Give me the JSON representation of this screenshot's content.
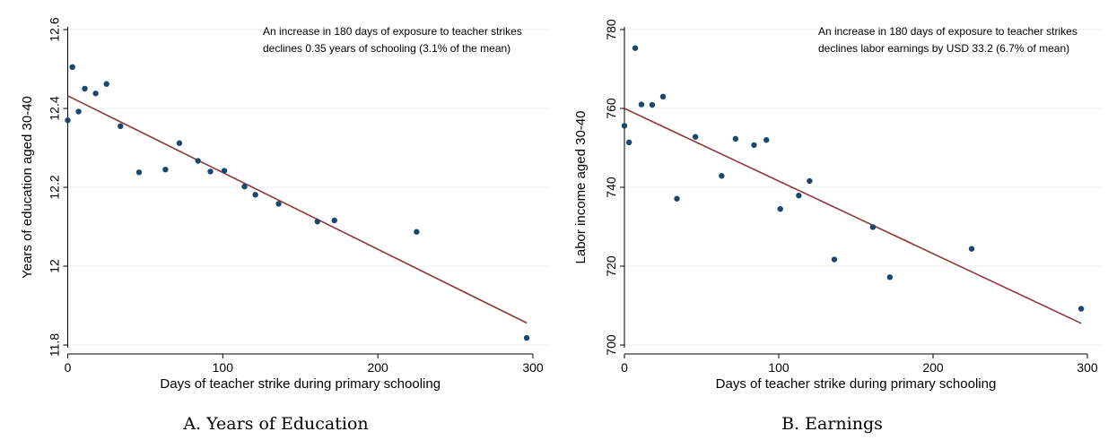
{
  "chart_data": [
    {
      "type": "scatter",
      "caption": "A. Years of Education",
      "annotation_lines": [
        "An increase in 180 days of exposure to teacher strikes",
        "declines 0.35 years of schooling (3.1% of the mean)"
      ],
      "xlabel": "Days of teacher strike during primary schooling",
      "ylabel": "Years of education aged 30-40",
      "xlim": [
        0,
        300
      ],
      "ylim": [
        11.8,
        12.6
      ],
      "xticks": [
        0,
        100,
        200,
        300
      ],
      "yticks": [
        11.8,
        12,
        12.2,
        12.4,
        12.6
      ],
      "ytick_labels": [
        "11.8",
        "12",
        "12.2",
        "12.4",
        "12.6"
      ],
      "grid": true,
      "points": [
        {
          "x": 0,
          "y": 12.37
        },
        {
          "x": 3,
          "y": 12.505
        },
        {
          "x": 7,
          "y": 12.392
        },
        {
          "x": 11,
          "y": 12.45
        },
        {
          "x": 18,
          "y": 12.438
        },
        {
          "x": 25,
          "y": 12.462
        },
        {
          "x": 34,
          "y": 12.355
        },
        {
          "x": 46,
          "y": 12.238
        },
        {
          "x": 63,
          "y": 12.245
        },
        {
          "x": 72,
          "y": 12.312
        },
        {
          "x": 84,
          "y": 12.267
        },
        {
          "x": 92,
          "y": 12.24
        },
        {
          "x": 101,
          "y": 12.242
        },
        {
          "x": 114,
          "y": 12.202
        },
        {
          "x": 121,
          "y": 12.181
        },
        {
          "x": 136,
          "y": 12.158
        },
        {
          "x": 161,
          "y": 12.113
        },
        {
          "x": 172,
          "y": 12.116
        },
        {
          "x": 225,
          "y": 12.087
        },
        {
          "x": 296,
          "y": 11.818
        }
      ],
      "fit_line": {
        "x": [
          0,
          296
        ],
        "y": [
          12.432,
          11.856
        ]
      },
      "point_color": "#1a476f",
      "line_color": "#90353b"
    },
    {
      "type": "scatter",
      "caption": "B. Earnings",
      "annotation_lines": [
        "An increase in 180 days of exposure to teacher strikes",
        "declines labor earnings by USD 33.2 (6.7% of mean)"
      ],
      "xlabel": "Days of teacher strike during primary schooling",
      "ylabel": "Labor income aged 30-40",
      "xlim": [
        0,
        300
      ],
      "ylim": [
        700,
        780
      ],
      "xticks": [
        0,
        100,
        200,
        300
      ],
      "yticks": [
        700,
        720,
        740,
        760,
        780
      ],
      "ytick_labels": [
        "700",
        "720",
        "740",
        "760",
        "780"
      ],
      "grid": true,
      "points": [
        {
          "x": 0,
          "y": 755.6
        },
        {
          "x": 3,
          "y": 751.4
        },
        {
          "x": 7,
          "y": 775.3
        },
        {
          "x": 11,
          "y": 761.0
        },
        {
          "x": 18,
          "y": 760.9
        },
        {
          "x": 25,
          "y": 763.0
        },
        {
          "x": 34,
          "y": 737.1
        },
        {
          "x": 46,
          "y": 752.8
        },
        {
          "x": 63,
          "y": 742.9
        },
        {
          "x": 72,
          "y": 752.3
        },
        {
          "x": 84,
          "y": 750.7
        },
        {
          "x": 92,
          "y": 752.0
        },
        {
          "x": 101,
          "y": 734.5
        },
        {
          "x": 113,
          "y": 737.9
        },
        {
          "x": 120,
          "y": 741.6
        },
        {
          "x": 136,
          "y": 721.7
        },
        {
          "x": 161,
          "y": 729.9
        },
        {
          "x": 172,
          "y": 717.2
        },
        {
          "x": 225,
          "y": 724.4
        },
        {
          "x": 296,
          "y": 709.2
        }
      ],
      "fit_line": {
        "x": [
          0,
          296
        ],
        "y": [
          760.0,
          705.5
        ]
      },
      "point_color": "#1a476f",
      "line_color": "#90353b"
    }
  ]
}
